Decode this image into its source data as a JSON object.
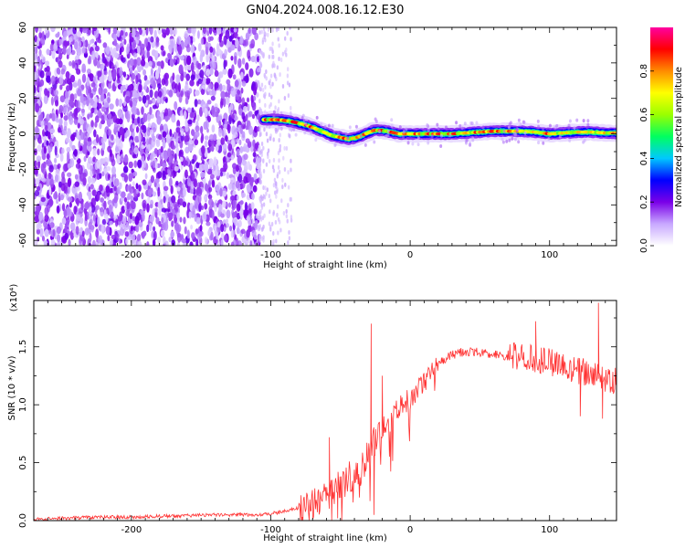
{
  "title": "GN04.2024.008.16.12.E30",
  "chart_data": [
    {
      "type": "heatmap",
      "title": "GN04.2024.008.16.12.E30",
      "xlabel": "Height of straight line (km)",
      "ylabel": "Frequency (Hz)",
      "xlim": [
        -270,
        148
      ],
      "ylim": [
        -63,
        60
      ],
      "x_ticks": [
        -200,
        -100,
        0,
        100
      ],
      "x_tick_labels": [
        "-200",
        "-100",
        "0",
        "100"
      ],
      "y_ticks": [
        -60,
        -40,
        -20,
        0,
        20,
        40,
        60
      ],
      "y_tick_labels": [
        "-60",
        "-40",
        "-20",
        "0",
        "20",
        "40",
        "60"
      ],
      "grid": false,
      "colorbar": {
        "label": "Normalized spectral amplitude",
        "range": [
          0,
          1
        ],
        "ticks": [
          0.0,
          0.2,
          0.4,
          0.6,
          0.8
        ],
        "tick_labels": [
          "0.0",
          "0.2",
          "0.4",
          "0.6",
          "0.8"
        ],
        "colormap": [
          "#ffffff",
          "#c8a8ff",
          "#7a00e8",
          "#0000ff",
          "#00c8ff",
          "#00ff60",
          "#9aff00",
          "#ffff00",
          "#ff8c00",
          "#ff0000",
          "#ff00a0"
        ]
      },
      "features": {
        "noise_region_x": [
          -270,
          -108
        ],
        "scatter_fade_x": [
          -108,
          -85
        ],
        "ridge": {
          "x": [
            -105,
            -95,
            -85,
            -75,
            -68,
            -62,
            -56,
            -50,
            -44,
            -38,
            -32,
            -26,
            -20,
            -14,
            -8,
            0,
            10,
            20,
            30,
            40,
            50,
            60,
            70,
            80,
            90,
            100,
            110,
            120,
            130,
            140,
            148
          ],
          "y": [
            8,
            8,
            7,
            5,
            3,
            1,
            -1,
            -2,
            -3,
            -2,
            0,
            2,
            2,
            1,
            0,
            0,
            0,
            0,
            0,
            0.5,
            1,
            1.5,
            1.5,
            1.5,
            1,
            0,
            0.5,
            1,
            1,
            0.5,
            0.5
          ]
        }
      }
    },
    {
      "type": "line",
      "xlabel": "Height of straight line (km)",
      "ylabel": "SNR (10 * v/v)",
      "y_scale_label": "(x10⁴)",
      "xlim": [
        -270,
        148
      ],
      "ylim": [
        0.0,
        1.9
      ],
      "x_ticks": [
        -200,
        -100,
        0,
        100
      ],
      "x_tick_labels": [
        "-200",
        "-100",
        "0",
        "100"
      ],
      "y_ticks": [
        0.0,
        0.5,
        1.0,
        1.5
      ],
      "y_tick_labels": [
        "0.0",
        "0.5",
        "1.0",
        "1.5"
      ],
      "grid": false,
      "color": "#ff3333",
      "series": [
        {
          "x": [
            -270,
            -250,
            -220,
            -200,
            -170,
            -140,
            -120,
            -110,
            -100,
            -90,
            -80,
            -72,
            -66,
            -62,
            -58,
            -54,
            -50,
            -45,
            -40,
            -35,
            -30,
            -25,
            -20,
            -15,
            -10,
            -5,
            0,
            5,
            10,
            15,
            20,
            25,
            30,
            35,
            40,
            45,
            50,
            55,
            60,
            70,
            80,
            90,
            100,
            110,
            120,
            130,
            140,
            148
          ],
          "values": [
            0.01,
            0.02,
            0.03,
            0.03,
            0.04,
            0.05,
            0.05,
            0.05,
            0.06,
            0.08,
            0.11,
            0.15,
            0.18,
            0.25,
            0.2,
            0.3,
            0.28,
            0.35,
            0.4,
            0.45,
            0.55,
            0.7,
            0.8,
            0.85,
            0.95,
            1.0,
            1.05,
            1.12,
            1.2,
            1.28,
            1.35,
            1.4,
            1.43,
            1.45,
            1.46,
            1.46,
            1.45,
            1.44,
            1.43,
            1.42,
            1.41,
            1.39,
            1.37,
            1.34,
            1.3,
            1.26,
            1.22,
            1.2
          ]
        }
      ],
      "spikes": [
        {
          "x": -58,
          "y": 0.72
        },
        {
          "x": -52,
          "y": 0.02
        },
        {
          "x": -28,
          "y": 1.7
        },
        {
          "x": -26,
          "y": 0.05
        },
        {
          "x": -20,
          "y": 1.25
        },
        {
          "x": 90,
          "y": 1.72
        },
        {
          "x": 122,
          "y": 0.9
        },
        {
          "x": 135,
          "y": 1.88
        },
        {
          "x": 138,
          "y": 0.88
        }
      ],
      "noise_amplitude": [
        {
          "x_from": -270,
          "x_to": -80,
          "amp": 0.015
        },
        {
          "x_from": -80,
          "x_to": -20,
          "amp": 0.15
        },
        {
          "x_from": -20,
          "x_to": 20,
          "amp": 0.1
        },
        {
          "x_from": 20,
          "x_to": 70,
          "amp": 0.04
        },
        {
          "x_from": 70,
          "x_to": 148,
          "amp": 0.12
        }
      ]
    }
  ]
}
